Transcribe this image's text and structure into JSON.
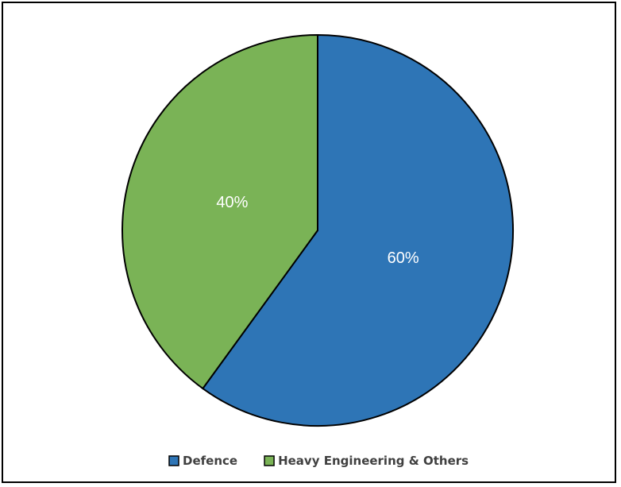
{
  "chart_data": {
    "type": "pie",
    "title": "",
    "slices": [
      {
        "label": "Defence",
        "value": 60,
        "display": "60%",
        "color": "#2e75b6"
      },
      {
        "label": "Heavy Engineering & Others",
        "value": 40,
        "display": "40%",
        "color": "#7ab356"
      }
    ],
    "legend_placement": "bottom",
    "start_angle_deg": 0,
    "direction": "clockwise",
    "slice_border_color": "#000000"
  }
}
